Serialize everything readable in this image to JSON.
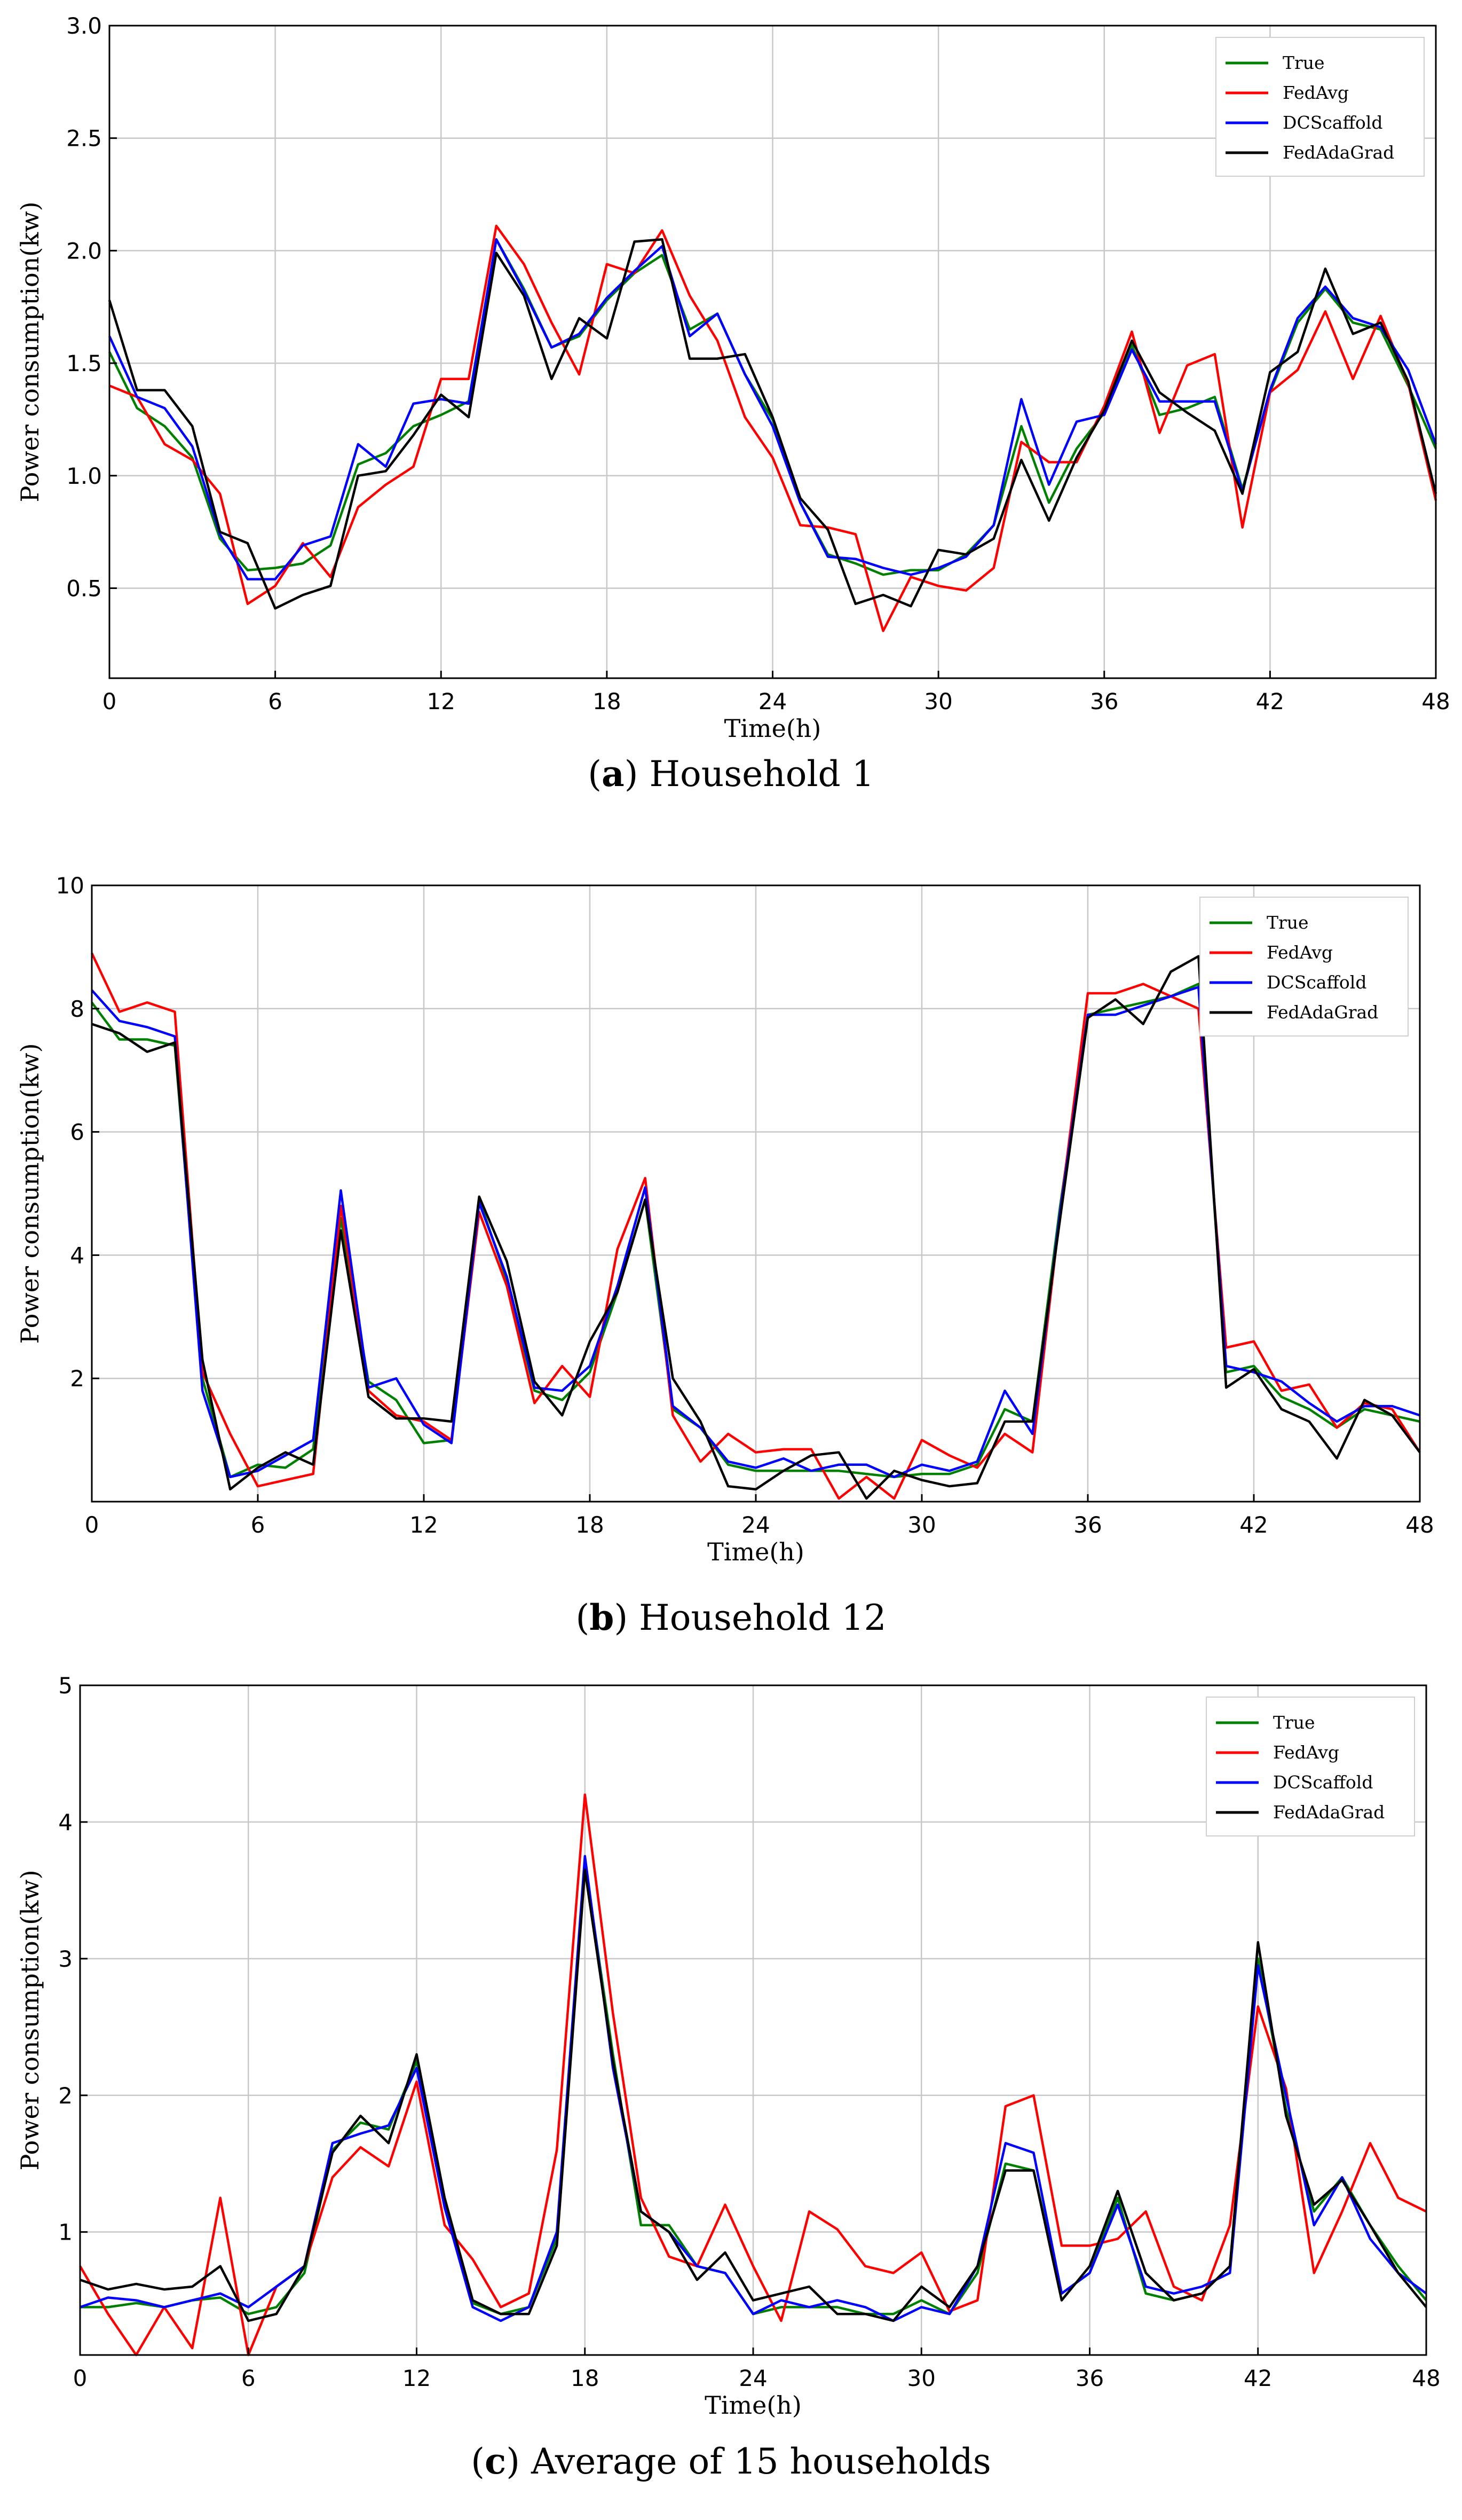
{
  "chart_data": [
    {
      "type": "line",
      "caption": {
        "letter": "a",
        "text": "Household 1"
      },
      "xlabel": "Time(h)",
      "ylabel": "Power consumption(kw)",
      "xlim": [
        0,
        48
      ],
      "ylim": [
        0.1,
        3.0
      ],
      "xticks": [
        "0",
        "6",
        "12",
        "18",
        "24",
        "30",
        "36",
        "42",
        "48"
      ],
      "yticks": [
        "0.5",
        "1.0",
        "1.5",
        "2.0",
        "2.5",
        "3.0"
      ],
      "grid": true,
      "legend_position": "top-right",
      "series": [
        {
          "name": "True",
          "color": "#008000",
          "values": [
            1.55,
            1.3,
            1.22,
            1.08,
            0.72,
            0.58,
            0.59,
            0.61,
            0.69,
            1.05,
            1.1,
            1.22,
            1.27,
            1.33,
            2.05,
            1.83,
            1.57,
            1.62,
            1.78,
            1.9,
            1.98,
            1.65,
            1.72,
            1.45,
            1.25,
            0.88,
            0.65,
            0.61,
            0.56,
            0.58,
            0.58,
            0.65,
            0.78,
            1.22,
            0.88,
            1.12,
            1.28,
            1.58,
            1.27,
            1.3,
            1.35,
            0.94,
            1.37,
            1.68,
            1.83,
            1.68,
            1.65,
            1.4,
            1.12
          ]
        },
        {
          "name": "FedAvg",
          "color": "#ff0000",
          "values": [
            1.4,
            1.35,
            1.14,
            1.07,
            0.92,
            0.43,
            0.51,
            0.7,
            0.55,
            0.86,
            0.96,
            1.04,
            1.43,
            1.43,
            2.11,
            1.94,
            1.68,
            1.45,
            1.94,
            1.9,
            2.09,
            1.8,
            1.6,
            1.26,
            1.08,
            0.78,
            0.77,
            0.74,
            0.31,
            0.55,
            0.51,
            0.49,
            0.59,
            1.15,
            1.06,
            1.06,
            1.31,
            1.64,
            1.19,
            1.49,
            1.54,
            0.77,
            1.37,
            1.47,
            1.73,
            1.43,
            1.71,
            1.41,
            0.89
          ]
        },
        {
          "name": "DCScaffold",
          "color": "#0000ff",
          "values": [
            1.62,
            1.35,
            1.3,
            1.13,
            0.74,
            0.54,
            0.54,
            0.69,
            0.73,
            1.14,
            1.04,
            1.32,
            1.34,
            1.32,
            2.05,
            1.82,
            1.57,
            1.63,
            1.79,
            1.91,
            2.02,
            1.62,
            1.72,
            1.45,
            1.22,
            0.88,
            0.64,
            0.63,
            0.59,
            0.56,
            0.59,
            0.64,
            0.78,
            1.34,
            0.96,
            1.24,
            1.27,
            1.56,
            1.33,
            1.33,
            1.33,
            0.93,
            1.38,
            1.7,
            1.84,
            1.7,
            1.66,
            1.47,
            1.14
          ]
        },
        {
          "name": "FedAdaGrad",
          "color": "#000000",
          "values": [
            1.78,
            1.38,
            1.38,
            1.22,
            0.75,
            0.7,
            0.41,
            0.47,
            0.51,
            1.0,
            1.02,
            1.18,
            1.36,
            1.26,
            1.99,
            1.8,
            1.43,
            1.7,
            1.61,
            2.04,
            2.05,
            1.52,
            1.52,
            1.54,
            1.26,
            0.9,
            0.76,
            0.43,
            0.47,
            0.42,
            0.67,
            0.65,
            0.72,
            1.07,
            0.8,
            1.08,
            1.29,
            1.6,
            1.37,
            1.28,
            1.2,
            0.92,
            1.46,
            1.55,
            1.92,
            1.63,
            1.68,
            1.42,
            0.92
          ]
        }
      ]
    },
    {
      "type": "line",
      "caption": {
        "letter": "b",
        "text": "Household 12"
      },
      "xlabel": "Time(h)",
      "ylabel": "Power consumption(kw)",
      "xlim": [
        0,
        48
      ],
      "ylim": [
        0,
        10
      ],
      "xticks": [
        "0",
        "6",
        "12",
        "18",
        "24",
        "30",
        "36",
        "42",
        "48"
      ],
      "yticks": [
        "2",
        "4",
        "6",
        "8",
        "10"
      ],
      "grid": true,
      "legend_position": "top-right",
      "series": [
        {
          "name": "True",
          "color": "#008000",
          "values": [
            8.1,
            7.5,
            7.5,
            7.4,
            2.0,
            0.4,
            0.6,
            0.55,
            0.85,
            4.6,
            1.95,
            1.65,
            0.95,
            1.0,
            4.9,
            3.6,
            1.8,
            1.65,
            2.1,
            3.4,
            4.9,
            1.5,
            1.2,
            0.6,
            0.5,
            0.5,
            0.5,
            0.5,
            0.45,
            0.4,
            0.45,
            0.45,
            0.6,
            1.5,
            1.3,
            4.8,
            7.9,
            8.0,
            8.1,
            8.2,
            8.4,
            2.1,
            2.2,
            1.7,
            1.5,
            1.2,
            1.5,
            1.4,
            1.3
          ]
        },
        {
          "name": "FedAvg",
          "color": "#ff0000",
          "values": [
            8.9,
            7.95,
            8.1,
            7.95,
            2.1,
            1.1,
            0.25,
            0.35,
            0.45,
            4.8,
            1.8,
            1.4,
            1.3,
            1.0,
            4.7,
            3.5,
            1.6,
            2.2,
            1.7,
            4.1,
            5.25,
            1.4,
            0.65,
            1.1,
            0.8,
            0.85,
            0.85,
            0.05,
            0.4,
            0.05,
            1.0,
            0.75,
            0.55,
            1.1,
            0.8,
            4.7,
            8.25,
            8.25,
            8.4,
            8.2,
            8.0,
            2.5,
            2.6,
            1.8,
            1.9,
            1.2,
            1.6,
            1.5,
            0.8
          ]
        },
        {
          "name": "DCScaffold",
          "color": "#0000ff",
          "values": [
            8.3,
            7.8,
            7.7,
            7.55,
            1.8,
            0.4,
            0.5,
            0.75,
            1.0,
            5.05,
            1.85,
            2.0,
            1.25,
            0.95,
            4.85,
            3.65,
            1.85,
            1.8,
            2.2,
            3.5,
            5.1,
            1.55,
            1.2,
            0.65,
            0.55,
            0.7,
            0.5,
            0.6,
            0.6,
            0.4,
            0.6,
            0.5,
            0.65,
            1.8,
            1.1,
            4.7,
            7.9,
            7.9,
            8.05,
            8.2,
            8.35,
            2.2,
            2.1,
            1.95,
            1.6,
            1.3,
            1.55,
            1.55,
            1.4
          ]
        },
        {
          "name": "FedAdaGrad",
          "color": "#000000",
          "values": [
            7.75,
            7.6,
            7.3,
            7.45,
            2.3,
            0.2,
            0.55,
            0.8,
            0.6,
            4.4,
            1.7,
            1.35,
            1.35,
            1.3,
            4.95,
            3.9,
            1.95,
            1.4,
            2.6,
            3.4,
            4.9,
            2.0,
            1.3,
            0.25,
            0.2,
            0.5,
            0.75,
            0.8,
            0.05,
            0.5,
            0.35,
            0.25,
            0.3,
            1.3,
            1.3,
            4.6,
            7.85,
            8.15,
            7.75,
            8.6,
            8.85,
            1.85,
            2.15,
            1.5,
            1.3,
            0.7,
            1.65,
            1.4,
            0.8
          ]
        }
      ]
    },
    {
      "type": "line",
      "caption": {
        "letter": "c",
        "text": "Average of 15 households"
      },
      "xlabel": "Time(h)",
      "ylabel": "Power consumption(kw)",
      "xlim": [
        0,
        48
      ],
      "ylim": [
        0.1,
        5.0
      ],
      "xticks": [
        "0",
        "6",
        "12",
        "18",
        "24",
        "30",
        "36",
        "42",
        "48"
      ],
      "yticks": [
        "1",
        "2",
        "3",
        "4",
        "5"
      ],
      "grid": true,
      "legend_position": "top-right",
      "series": [
        {
          "name": "True",
          "color": "#008000",
          "values": [
            0.45,
            0.45,
            0.48,
            0.45,
            0.5,
            0.52,
            0.4,
            0.45,
            0.7,
            1.6,
            1.8,
            1.75,
            2.25,
            1.2,
            0.48,
            0.4,
            0.45,
            0.95,
            3.7,
            2.3,
            1.05,
            1.05,
            0.75,
            0.7,
            0.4,
            0.45,
            0.45,
            0.45,
            0.4,
            0.4,
            0.5,
            0.4,
            0.7,
            1.5,
            1.45,
            0.55,
            0.7,
            1.25,
            0.55,
            0.5,
            0.55,
            0.75,
            3.0,
            1.9,
            1.15,
            1.4,
            1.05,
            0.75,
            0.5
          ]
        },
        {
          "name": "FedAvg",
          "color": "#ff0000",
          "values": [
            0.75,
            0.4,
            0.1,
            0.45,
            0.15,
            1.25,
            0.08,
            0.6,
            0.75,
            1.4,
            1.62,
            1.48,
            2.1,
            1.05,
            0.8,
            0.45,
            0.55,
            1.6,
            4.2,
            2.6,
            1.25,
            0.82,
            0.75,
            1.2,
            0.75,
            0.35,
            1.15,
            1.02,
            0.75,
            0.7,
            0.85,
            0.42,
            0.5,
            1.92,
            2.0,
            0.9,
            0.9,
            0.95,
            1.15,
            0.6,
            0.5,
            1.05,
            2.65,
            2.05,
            0.7,
            1.15,
            1.65,
            1.25,
            1.15
          ]
        },
        {
          "name": "DCScaffold",
          "color": "#0000ff",
          "values": [
            0.45,
            0.52,
            0.5,
            0.45,
            0.5,
            0.55,
            0.45,
            0.6,
            0.75,
            1.65,
            1.72,
            1.78,
            2.2,
            1.18,
            0.45,
            0.35,
            0.45,
            1.0,
            3.75,
            2.2,
            1.15,
            1.0,
            0.75,
            0.7,
            0.4,
            0.5,
            0.45,
            0.5,
            0.45,
            0.35,
            0.45,
            0.4,
            0.75,
            1.65,
            1.58,
            0.55,
            0.7,
            1.2,
            0.6,
            0.55,
            0.6,
            0.7,
            2.95,
            2.0,
            1.05,
            1.4,
            0.95,
            0.7,
            0.55
          ]
        },
        {
          "name": "FedAdaGrad",
          "color": "#000000",
          "values": [
            0.65,
            0.58,
            0.62,
            0.58,
            0.6,
            0.75,
            0.35,
            0.4,
            0.75,
            1.58,
            1.85,
            1.65,
            2.3,
            1.25,
            0.5,
            0.4,
            0.4,
            0.9,
            3.65,
            2.25,
            1.15,
            1.0,
            0.65,
            0.85,
            0.5,
            0.55,
            0.6,
            0.4,
            0.4,
            0.35,
            0.6,
            0.45,
            0.75,
            1.45,
            1.45,
            0.5,
            0.75,
            1.3,
            0.7,
            0.5,
            0.55,
            0.75,
            3.12,
            1.85,
            1.2,
            1.38,
            1.05,
            0.7,
            0.45
          ]
        }
      ]
    }
  ]
}
